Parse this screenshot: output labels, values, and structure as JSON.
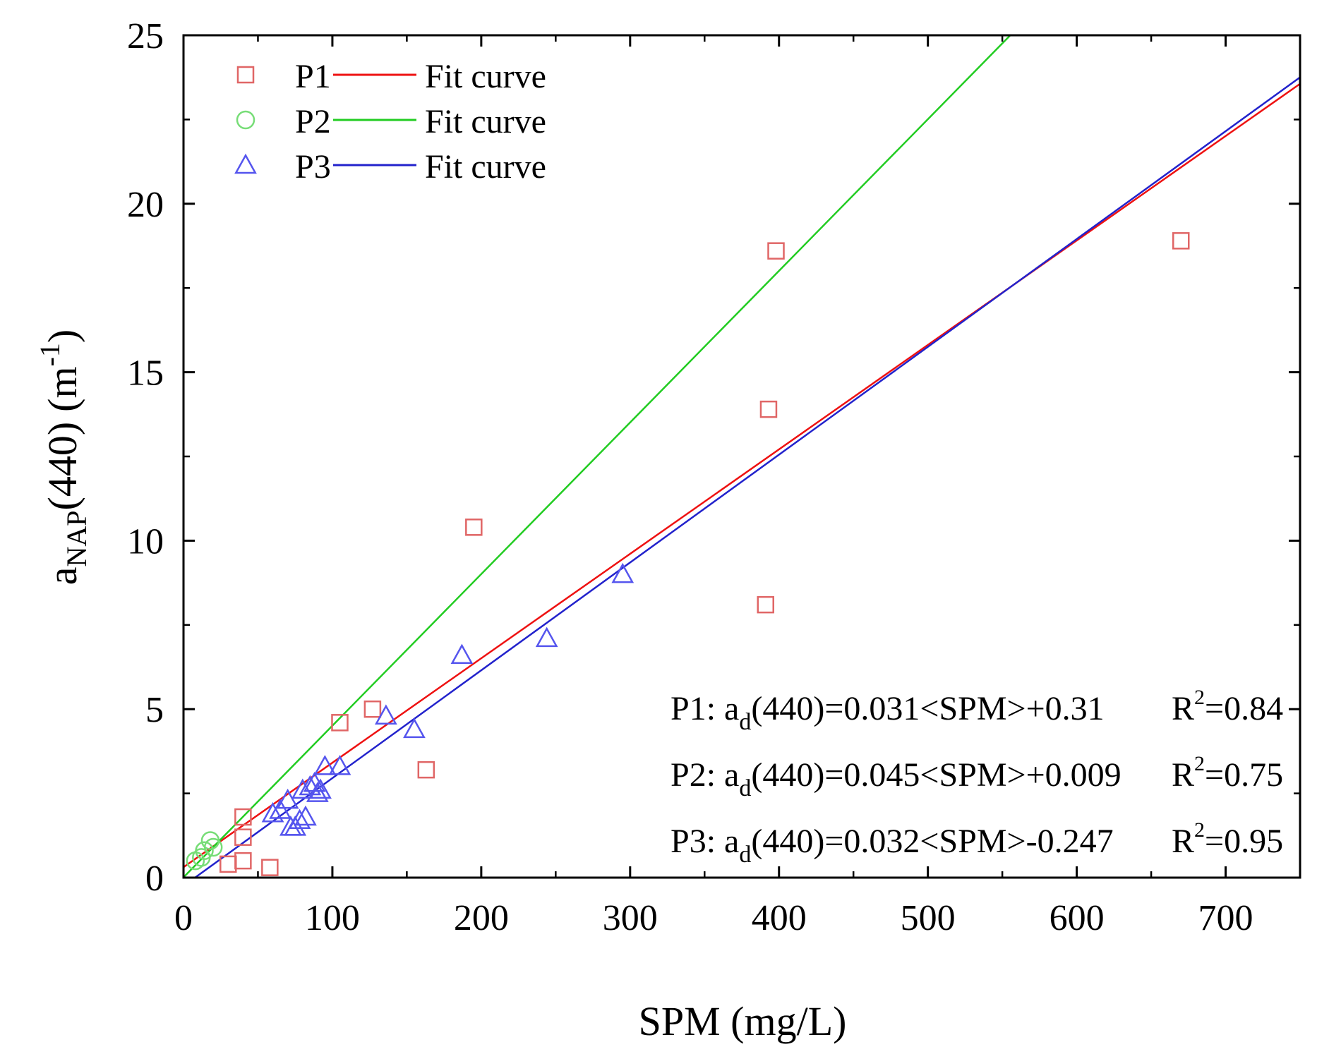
{
  "chart_data": {
    "type": "scatter",
    "title": "",
    "xlabel": "SPM (mg/L)",
    "ylabel": {
      "base": "a",
      "subscript": "NAP",
      "wavelength": "(440)",
      "unit_prefix": "(m",
      "unit_exponent": "-1",
      "unit_suffix": ")"
    },
    "xlim": [
      0,
      750
    ],
    "ylim": [
      0,
      25
    ],
    "xticks": [
      0,
      100,
      200,
      300,
      400,
      500,
      600,
      700
    ],
    "yticks": [
      0,
      5,
      10,
      15,
      20,
      25
    ],
    "x_minor_step": 50,
    "y_minor_step": 2.5,
    "grid": false,
    "legend_position": "top-left",
    "series": [
      {
        "name": "P1",
        "marker": "square",
        "color": "#e06666",
        "fit_label": "Fit curve",
        "fit_color": "#ee1111",
        "fit": {
          "slope": 0.031,
          "intercept": 0.31
        },
        "points": [
          [
            30,
            0.4
          ],
          [
            40,
            0.5
          ],
          [
            40,
            1.2
          ],
          [
            40,
            1.8
          ],
          [
            58,
            0.3
          ],
          [
            105,
            4.6
          ],
          [
            127,
            5.0
          ],
          [
            163,
            3.2
          ],
          [
            195,
            10.4
          ],
          [
            391,
            8.1
          ],
          [
            393,
            13.9
          ],
          [
            398,
            18.6
          ],
          [
            670,
            18.9
          ]
        ]
      },
      {
        "name": "P2",
        "marker": "circle",
        "color": "#77dd77",
        "fit_label": "Fit curve",
        "fit_color": "#22cc22",
        "fit": {
          "slope": 0.045,
          "intercept": 0.009
        },
        "points": [
          [
            8,
            0.5
          ],
          [
            12,
            0.6
          ],
          [
            14,
            0.8
          ],
          [
            18,
            1.1
          ],
          [
            20,
            0.9
          ]
        ]
      },
      {
        "name": "P3",
        "marker": "triangle",
        "color": "#5555ee",
        "fit_label": "Fit curve",
        "fit_color": "#2222cc",
        "fit": {
          "slope": 0.032,
          "intercept": -0.247
        },
        "points": [
          [
            60,
            1.9
          ],
          [
            65,
            2.0
          ],
          [
            70,
            2.3
          ],
          [
            72,
            1.5
          ],
          [
            75,
            1.5
          ],
          [
            78,
            1.7
          ],
          [
            80,
            2.6
          ],
          [
            82,
            1.8
          ],
          [
            85,
            2.7
          ],
          [
            88,
            2.8
          ],
          [
            90,
            2.5
          ],
          [
            92,
            2.6
          ],
          [
            95,
            3.3
          ],
          [
            105,
            3.3
          ],
          [
            136,
            4.8
          ],
          [
            155,
            4.4
          ],
          [
            187,
            6.6
          ],
          [
            244,
            7.1
          ],
          [
            295,
            9.0
          ]
        ]
      }
    ],
    "annotations": [
      {
        "series": "P1",
        "prefix": "P1: a",
        "sub": "d",
        "eq": "(440)=0.031<SPM>+0.31",
        "r2_base": "R",
        "r2_exp": "2",
        "r2_val": "=0.84"
      },
      {
        "series": "P2",
        "prefix": "P2: a",
        "sub": "d",
        "eq": "(440)=0.045<SPM>+0.009",
        "r2_base": "R",
        "r2_exp": "2",
        "r2_val": "=0.75"
      },
      {
        "series": "P3",
        "prefix": "P3: a",
        "sub": "d",
        "eq": "(440)=0.032<SPM>-0.247",
        "r2_base": "R",
        "r2_exp": "2",
        "r2_val": "=0.95"
      }
    ]
  }
}
